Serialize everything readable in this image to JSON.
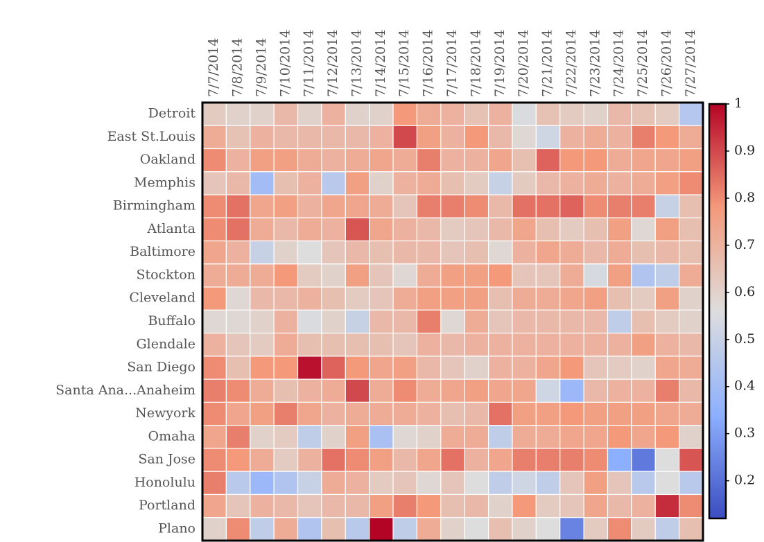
{
  "chart_data": {
    "type": "heatmap",
    "colormap": "coolwarm",
    "x": [
      "7/7/2014",
      "7/8/2014",
      "7/9/2014",
      "7/10/2014",
      "7/11/2014",
      "7/12/2014",
      "7/13/2014",
      "7/14/2014",
      "7/15/2014",
      "7/16/2014",
      "7/17/2014",
      "7/18/2014",
      "7/19/2014",
      "7/20/2014",
      "7/21/2014",
      "7/22/2014",
      "7/23/2014",
      "7/24/2014",
      "7/25/2014",
      "7/26/2014",
      "7/27/2014"
    ],
    "categories": [
      "Detroit",
      "East St.Louis",
      "Oakland",
      "Memphis",
      "Birmingham",
      "Atlanta",
      "Baltimore",
      "Stockton",
      "Cleveland",
      "Buffalo",
      "Glendale",
      "San Diego",
      "Santa Ana...Anaheim",
      "Newyork",
      "Omaha",
      "San Jose",
      "Honolulu",
      "Portland",
      "Plano"
    ],
    "values": [
      [
        0.62,
        0.6,
        0.6,
        0.68,
        0.6,
        0.7,
        0.6,
        0.6,
        0.78,
        0.72,
        0.7,
        0.65,
        0.7,
        0.55,
        0.65,
        0.62,
        0.6,
        0.68,
        0.65,
        0.62,
        0.45
      ],
      [
        0.72,
        0.65,
        0.7,
        0.68,
        0.68,
        0.68,
        0.68,
        0.7,
        0.9,
        0.76,
        0.7,
        0.78,
        0.68,
        0.58,
        0.52,
        0.7,
        0.72,
        0.7,
        0.82,
        0.78,
        0.72
      ],
      [
        0.8,
        0.7,
        0.76,
        0.76,
        0.72,
        0.7,
        0.72,
        0.74,
        0.72,
        0.82,
        0.7,
        0.7,
        0.74,
        0.66,
        0.86,
        0.78,
        0.78,
        0.72,
        0.74,
        0.74,
        0.76
      ],
      [
        0.64,
        0.68,
        0.4,
        0.66,
        0.7,
        0.46,
        0.76,
        0.6,
        0.7,
        0.72,
        0.66,
        0.62,
        0.5,
        0.62,
        0.68,
        0.7,
        0.72,
        0.7,
        0.72,
        0.76,
        0.8
      ],
      [
        0.8,
        0.84,
        0.74,
        0.76,
        0.7,
        0.74,
        0.74,
        0.72,
        0.64,
        0.82,
        0.82,
        0.8,
        0.68,
        0.84,
        0.84,
        0.86,
        0.8,
        0.82,
        0.82,
        0.5,
        0.66
      ],
      [
        0.8,
        0.84,
        0.72,
        0.68,
        0.72,
        0.7,
        0.88,
        0.74,
        0.7,
        0.68,
        0.62,
        0.64,
        0.68,
        0.74,
        0.66,
        0.62,
        0.66,
        0.76,
        0.58,
        0.76,
        0.66
      ],
      [
        0.74,
        0.7,
        0.5,
        0.6,
        0.56,
        0.64,
        0.68,
        0.66,
        0.68,
        0.68,
        0.64,
        0.66,
        0.58,
        0.7,
        0.74,
        0.72,
        0.68,
        0.72,
        0.66,
        0.68,
        0.66
      ],
      [
        0.72,
        0.72,
        0.72,
        0.78,
        0.62,
        0.6,
        0.76,
        0.64,
        0.58,
        0.72,
        0.76,
        0.76,
        0.78,
        0.64,
        0.64,
        0.72,
        0.54,
        0.76,
        0.44,
        0.48,
        0.72
      ],
      [
        0.78,
        0.58,
        0.68,
        0.68,
        0.7,
        0.66,
        0.62,
        0.64,
        0.72,
        0.76,
        0.76,
        0.76,
        0.66,
        0.72,
        0.72,
        0.74,
        0.76,
        0.66,
        0.62,
        0.76,
        0.6
      ],
      [
        0.58,
        0.58,
        0.6,
        0.7,
        0.55,
        0.6,
        0.5,
        0.68,
        0.68,
        0.82,
        0.58,
        0.72,
        0.64,
        0.68,
        0.68,
        0.68,
        0.68,
        0.48,
        0.66,
        0.62,
        0.6
      ],
      [
        0.7,
        0.64,
        0.62,
        0.72,
        0.66,
        0.66,
        0.66,
        0.66,
        0.64,
        0.7,
        0.68,
        0.7,
        0.7,
        0.7,
        0.7,
        0.7,
        0.7,
        0.7,
        0.76,
        0.7,
        0.68
      ],
      [
        0.8,
        0.66,
        0.78,
        0.78,
        0.98,
        0.86,
        0.78,
        0.74,
        0.76,
        0.68,
        0.64,
        0.6,
        0.7,
        0.7,
        0.74,
        0.78,
        0.64,
        0.62,
        0.6,
        0.74,
        0.72
      ],
      [
        0.82,
        0.8,
        0.72,
        0.66,
        0.7,
        0.72,
        0.9,
        0.72,
        0.8,
        0.72,
        0.74,
        0.76,
        0.74,
        0.74,
        0.52,
        0.38,
        0.68,
        0.7,
        0.7,
        0.82,
        0.68
      ],
      [
        0.8,
        0.74,
        0.76,
        0.82,
        0.74,
        0.7,
        0.72,
        0.72,
        0.72,
        0.7,
        0.66,
        0.68,
        0.84,
        0.76,
        0.76,
        0.78,
        0.76,
        0.76,
        0.76,
        0.74,
        0.72
      ],
      [
        0.74,
        0.82,
        0.6,
        0.62,
        0.48,
        0.6,
        0.76,
        0.42,
        0.58,
        0.6,
        0.72,
        0.72,
        0.48,
        0.72,
        0.72,
        0.74,
        0.74,
        0.78,
        0.74,
        0.78,
        0.6
      ],
      [
        0.8,
        0.78,
        0.72,
        0.62,
        0.7,
        0.84,
        0.8,
        0.76,
        0.68,
        0.74,
        0.84,
        0.7,
        0.74,
        0.82,
        0.82,
        0.82,
        0.8,
        0.34,
        0.22,
        0.56,
        0.88
      ],
      [
        0.82,
        0.46,
        0.38,
        0.44,
        0.5,
        0.72,
        0.7,
        0.62,
        0.64,
        0.58,
        0.64,
        0.56,
        0.48,
        0.52,
        0.48,
        0.64,
        0.76,
        0.64,
        0.46,
        0.56,
        0.46
      ],
      [
        0.74,
        0.64,
        0.7,
        0.68,
        0.64,
        0.68,
        0.68,
        0.76,
        0.82,
        0.78,
        0.66,
        0.68,
        0.6,
        0.78,
        0.62,
        0.64,
        0.74,
        0.68,
        0.7,
        0.94,
        0.8
      ],
      [
        0.6,
        0.8,
        0.48,
        0.72,
        0.44,
        0.66,
        0.46,
        1.0,
        0.48,
        0.72,
        0.6,
        0.56,
        0.66,
        0.6,
        0.56,
        0.24,
        0.62,
        0.8,
        0.62,
        0.48,
        0.66
      ]
    ],
    "zlim": [
      0.12,
      1.0
    ],
    "zticks": [
      0.2,
      0.3,
      0.4,
      0.5,
      0.6,
      0.7,
      0.8,
      0.9,
      1.0
    ]
  }
}
